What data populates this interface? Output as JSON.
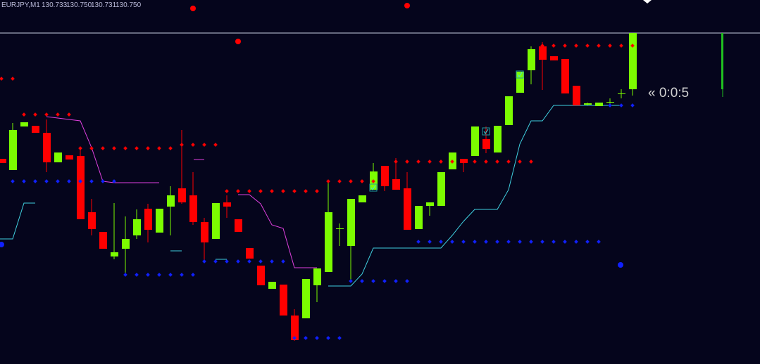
{
  "header": {
    "symbol": "EURJPY,M1",
    "open": "130.733",
    "high": "130.750",
    "low": "130.731",
    "close": "130.750"
  },
  "timer": "« 0:0:5"
}
